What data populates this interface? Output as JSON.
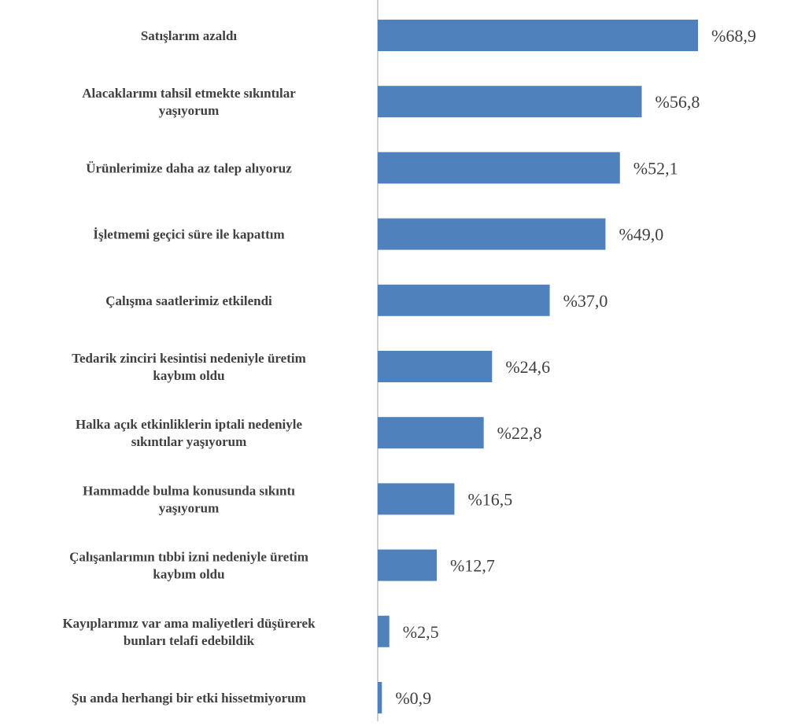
{
  "colors": {
    "bar": "#4f81bd",
    "axis": "#bfbfbf",
    "text": "#404040"
  },
  "chart_data": {
    "type": "bar",
    "orientation": "horizontal",
    "categories": [
      [
        "Satışlarım azaldı"
      ],
      [
        "Alacaklarımı tahsil etmekte sıkıntılar",
        "yaşıyorum"
      ],
      [
        "Ürünlerimize daha az talep alıyoruz"
      ],
      [
        "İşletmemi geçici süre ile kapattım"
      ],
      [
        "Çalışma saatlerimiz etkilendi"
      ],
      [
        "Tedarik zinciri kesintisi nedeniyle üretim",
        "kaybım oldu"
      ],
      [
        "Halka açık etkinliklerin iptali nedeniyle",
        "sıkıntılar yaşıyorum"
      ],
      [
        "Hammadde bulma konusunda sıkıntı",
        "yaşıyorum"
      ],
      [
        "Çalışanlarımın tıbbi izni nedeniyle üretim",
        "kaybım oldu"
      ],
      [
        "Kayıplarımız var ama maliyetleri düşürerek",
        "bunları telafi edebildik"
      ],
      [
        "Şu anda herhangi bir etki hissetmiyorum"
      ]
    ],
    "values": [
      68.9,
      56.8,
      52.1,
      49.0,
      37.0,
      24.6,
      22.8,
      16.5,
      12.7,
      2.5,
      0.9
    ],
    "value_labels": [
      "%68,9",
      "%56,8",
      "%52,1",
      "%49,0",
      "%37,0",
      "%24,6",
      "%22,8",
      "%16,5",
      "%12,7",
      "%2,5",
      "%0,9"
    ],
    "xlim": [
      0,
      80
    ],
    "grid": false,
    "legend": "none"
  }
}
